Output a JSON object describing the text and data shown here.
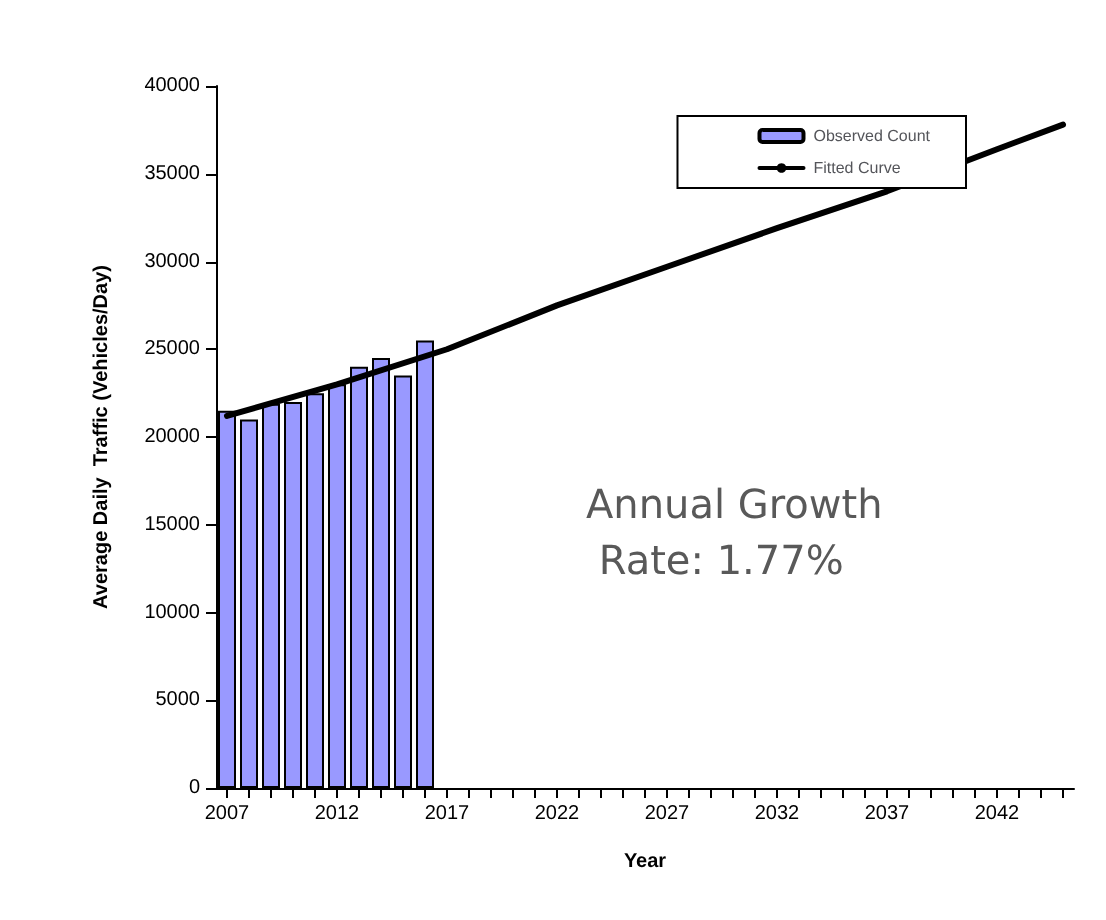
{
  "chart_data": {
    "type": "bar",
    "xlabel": "Year",
    "ylabel": "Average Daily  Traffic (Vehicles/Day)",
    "xlim": [
      2006.5,
      2045.5
    ],
    "xticks": [
      2007,
      {
        "value": 2008,
        "label": null
      },
      {
        "value": 2009,
        "label": null
      },
      {
        "value": 2010,
        "label": null
      },
      {
        "value": 2011,
        "label": null
      },
      2012,
      {
        "value": 2013,
        "label": null
      },
      {
        "value": 2014,
        "label": null
      },
      {
        "value": 2015,
        "label": null
      },
      {
        "value": 2016,
        "label": null
      },
      2017,
      {
        "value": 2018,
        "label": null
      },
      {
        "value": 2019,
        "label": null
      },
      {
        "value": 2020,
        "label": null
      },
      {
        "value": 2021,
        "label": null
      },
      2022,
      {
        "value": 2023,
        "label": null
      },
      {
        "value": 2024,
        "label": null
      },
      {
        "value": 2025,
        "label": null
      },
      {
        "value": 2026,
        "label": null
      },
      2027,
      {
        "value": 2028,
        "label": null
      },
      {
        "value": 2029,
        "label": null
      },
      {
        "value": 2030,
        "label": null
      },
      {
        "value": 2031,
        "label": null
      },
      2032,
      {
        "value": 2033,
        "label": null
      },
      {
        "value": 2034,
        "label": null
      },
      {
        "value": 2035,
        "label": null
      },
      {
        "value": 2036,
        "label": null
      },
      2037,
      {
        "value": 2038,
        "label": null
      },
      {
        "value": 2039,
        "label": null
      },
      {
        "value": 2040,
        "label": null
      },
      {
        "value": 2041,
        "label": null
      },
      2042,
      {
        "value": 2043,
        "label": null
      },
      {
        "value": 2044,
        "label": null
      },
      {
        "value": 2045,
        "label": null
      }
    ],
    "ylim": [
      0,
      40000
    ],
    "yticks": [
      0,
      5000,
      10000,
      15000,
      20000,
      25000,
      30000,
      35000,
      40000
    ],
    "grid": false,
    "legend": "top right",
    "series": [
      {
        "name": "Observed Count",
        "color": "#9999ff",
        "x": [
          2007,
          2008,
          2009,
          2010,
          2011,
          2012,
          2013,
          2014,
          2015,
          2016
        ],
        "values": [
          21500,
          21000,
          21900,
          22000,
          22500,
          23000,
          24000,
          24500,
          23500,
          25500
        ]
      },
      {
        "name": "Fitted Curve",
        "type": "line",
        "color": "#000000",
        "marker": "none",
        "line_style": "solid",
        "x": [
          2007,
          2012,
          2017,
          2022,
          2027,
          2032,
          2037,
          2042,
          2045
        ],
        "values": [
          21200,
          23000,
          25000,
          27500,
          29700,
          31900,
          34000,
          36400,
          37800
        ]
      }
    ],
    "annotations": [
      {
        "text": "Annual Growth Rate: 1.77%"
      }
    ]
  }
}
